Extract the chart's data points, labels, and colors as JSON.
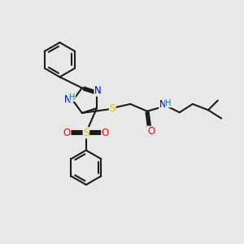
{
  "bg_color": "#e8e8e8",
  "bond_color": "#1a1a1a",
  "bond_width": 1.5,
  "atom_colors": {
    "N": "#0000cc",
    "S": "#cccc00",
    "O": "#ff0000",
    "H": "#008080"
  },
  "font_size": 8.5,
  "fig_size": [
    3.0,
    3.0
  ],
  "dpi": 100
}
